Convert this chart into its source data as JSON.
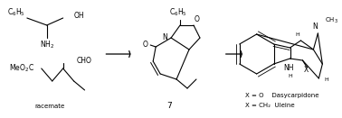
{
  "bg_color": "#ffffff",
  "fig_width": 3.78,
  "fig_height": 1.31,
  "dpi": 100,
  "label_7": "7",
  "label_racemate": "racemate",
  "label_X_O": "X = O    Dasycarpidone",
  "label_X_CH2": "X = CH₂  Uleine"
}
